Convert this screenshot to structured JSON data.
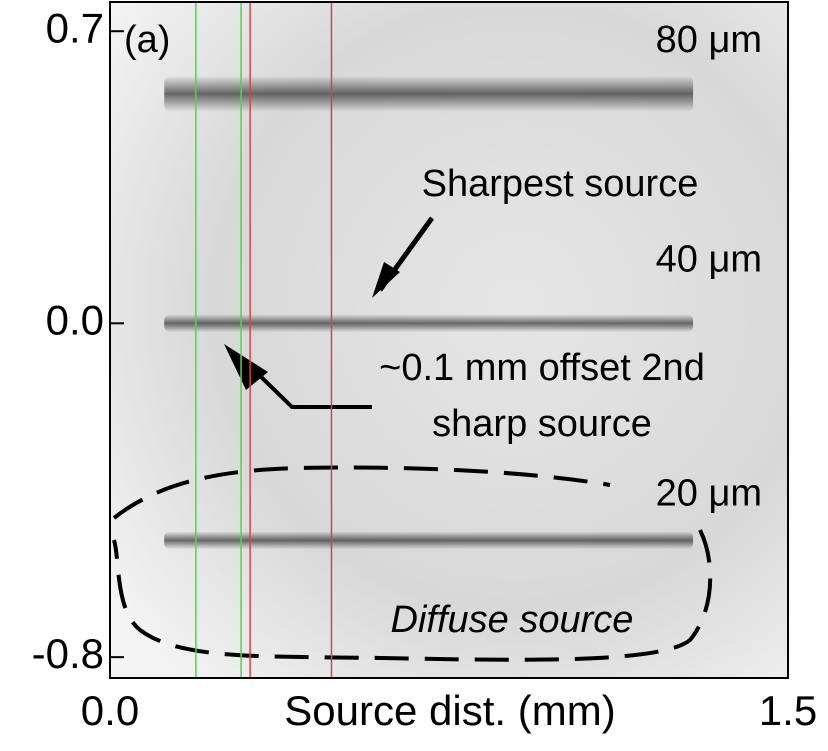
{
  "chart_data": {
    "type": "image",
    "panel_label": "(a)",
    "xlabel": "Source dist. (mm)",
    "xlim": [
      0,
      1.5
    ],
    "ylim": [
      -0.85,
      0.77
    ],
    "xticks": [
      {
        "value": 0,
        "label": "0.0"
      },
      1.5
    ],
    "yticks": [
      0.7,
      {
        "value": 0,
        "label": "0.0"
      },
      -0.8
    ],
    "bands": [
      {
        "label": "80 μm",
        "y": 0.55
      },
      {
        "label": "40 μm",
        "y": 0.0
      },
      {
        "label": "20 μm",
        "y": -0.52
      }
    ],
    "lines": [
      {
        "x": 0.19,
        "color": "#44dd44"
      },
      {
        "x": 0.29,
        "color": "#44dd44"
      },
      {
        "x": 0.31,
        "color": "#e04040"
      },
      {
        "x": 0.49,
        "color": "#e04040"
      }
    ],
    "annotations": [
      "Sharpest source",
      "~0.1 mm offset 2nd",
      "sharp source",
      "Diffuse source"
    ]
  }
}
